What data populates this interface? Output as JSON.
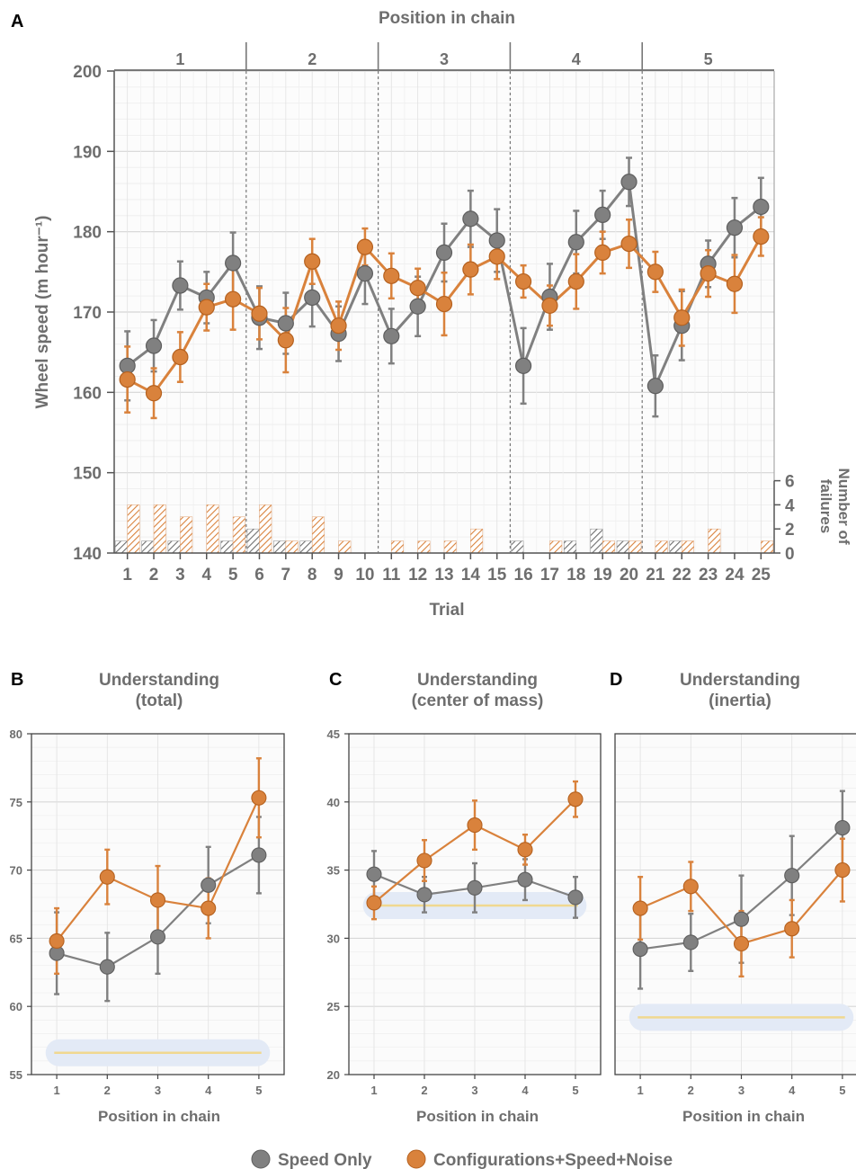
{
  "colors": {
    "speed_only": "#808080",
    "speed_only_edge": "#5e5e5e",
    "config": "#d9823c",
    "config_edge": "#b5611f",
    "chance": "#f0d890",
    "chance_band": "#e3eaf6",
    "grid": "#dcdcdc",
    "axis_text": "#6e6e6e"
  },
  "legend": [
    {
      "key": "speed_only",
      "label": "Speed Only"
    },
    {
      "key": "config",
      "label": "Configurations+Speed+Noise"
    }
  ],
  "chart_data": [
    {
      "panel": "A",
      "type": "line",
      "title": "Position in chain",
      "xlabel": "Trial",
      "ylabel": "Wheel speed (m hour⁻¹)",
      "y2label_line1": "Number of",
      "y2label_line2": "failures",
      "x": [
        1,
        2,
        3,
        4,
        5,
        6,
        7,
        8,
        9,
        10,
        11,
        12,
        13,
        14,
        15,
        16,
        17,
        18,
        19,
        20,
        21,
        22,
        23,
        24,
        25
      ],
      "xlim": [
        0.5,
        25.5
      ],
      "ylim": [
        140,
        200
      ],
      "yticks": [
        140,
        150,
        160,
        170,
        180,
        190,
        200
      ],
      "y2lim": [
        0,
        6
      ],
      "y2ticks": [
        0,
        2,
        4,
        6
      ],
      "chain_positions": [
        "1",
        "2",
        "3",
        "4",
        "5"
      ],
      "chain_boundaries": [
        5.5,
        10.5,
        15.5,
        20.5
      ],
      "grid": true,
      "series": [
        {
          "key": "speed_only",
          "values": [
            163.3,
            165.8,
            173.3,
            171.8,
            176.1,
            169.3,
            168.6,
            171.8,
            167.3,
            174.8,
            167.0,
            170.7,
            177.4,
            181.6,
            178.9,
            163.3,
            171.9,
            178.7,
            182.1,
            186.2,
            160.8,
            168.3,
            176.0,
            180.5,
            183.1
          ],
          "err": [
            4.3,
            3.2,
            3.0,
            3.2,
            3.8,
            3.9,
            3.8,
            3.6,
            3.4,
            3.8,
            3.4,
            3.7,
            3.6,
            3.5,
            3.9,
            4.7,
            4.1,
            3.9,
            3.0,
            3.0,
            3.8,
            4.3,
            2.9,
            3.7,
            3.6
          ],
          "failures": [
            1,
            1,
            1,
            0,
            1,
            2,
            1,
            1,
            0,
            0,
            0,
            0,
            0,
            0,
            0,
            1,
            0,
            1,
            2,
            1,
            0,
            1,
            0,
            0,
            0
          ]
        },
        {
          "key": "config",
          "values": [
            161.6,
            159.9,
            164.4,
            170.6,
            171.6,
            169.8,
            166.5,
            176.3,
            168.3,
            178.1,
            174.5,
            173.0,
            171.0,
            175.3,
            176.9,
            173.8,
            170.8,
            173.8,
            177.4,
            178.5,
            175.0,
            169.3,
            174.8,
            173.5,
            179.4
          ],
          "err": [
            4.1,
            3.1,
            3.1,
            2.9,
            3.8,
            3.2,
            4.0,
            2.8,
            3.0,
            2.3,
            2.8,
            2.4,
            3.9,
            3.1,
            2.8,
            2.0,
            2.5,
            3.4,
            2.6,
            3.0,
            2.5,
            3.5,
            2.9,
            3.6,
            2.4
          ],
          "failures": [
            4,
            4,
            3,
            4,
            3,
            4,
            1,
            3,
            1,
            0,
            1,
            1,
            1,
            2,
            0,
            0,
            1,
            0,
            1,
            1,
            1,
            1,
            2,
            0,
            1
          ]
        }
      ]
    },
    {
      "panel": "B",
      "type": "line",
      "title_line1": "Understanding",
      "title_line2": "(total)",
      "xlabel": "Position in chain",
      "x": [
        1,
        2,
        3,
        4,
        5
      ],
      "xlim": [
        0.5,
        5.5
      ],
      "ylim": [
        55,
        80
      ],
      "yticks": [
        55,
        60,
        65,
        70,
        75,
        80
      ],
      "chance": 56.6,
      "series": [
        {
          "key": "speed_only",
          "values": [
            63.9,
            62.9,
            65.1,
            68.9,
            71.1
          ],
          "err": [
            3.0,
            2.5,
            2.7,
            2.8,
            2.8
          ]
        },
        {
          "key": "config",
          "values": [
            64.8,
            69.5,
            67.8,
            67.2,
            75.3
          ],
          "err": [
            2.4,
            2.0,
            2.5,
            2.2,
            2.9
          ]
        }
      ]
    },
    {
      "panel": "C",
      "type": "line",
      "title_line1": "Understanding",
      "title_line2": "(center of mass)",
      "xlabel": "Position in chain",
      "x": [
        1,
        2,
        3,
        4,
        5
      ],
      "xlim": [
        0.5,
        5.5
      ],
      "ylim": [
        20,
        45
      ],
      "yticks": [
        20,
        25,
        30,
        35,
        40,
        45
      ],
      "chance": 32.4,
      "series": [
        {
          "key": "speed_only",
          "values": [
            34.7,
            33.2,
            33.7,
            34.3,
            33.0
          ],
          "err": [
            1.7,
            1.3,
            1.8,
            1.5,
            1.5
          ]
        },
        {
          "key": "config",
          "values": [
            32.6,
            35.7,
            38.3,
            36.5,
            40.2
          ],
          "err": [
            1.2,
            1.5,
            1.8,
            1.1,
            1.3
          ]
        }
      ]
    },
    {
      "panel": "D",
      "type": "line",
      "title_line1": "Understanding",
      "title_line2": "(inertia)",
      "xlabel": "Position in chain",
      "x": [
        1,
        2,
        3,
        4,
        5
      ],
      "xlim": [
        0.5,
        5.5
      ],
      "ylim": [
        20,
        45
      ],
      "yticks": [
        20,
        25,
        30,
        35,
        40,
        45
      ],
      "chance": 24.2,
      "series": [
        {
          "key": "speed_only",
          "values": [
            29.2,
            29.7,
            31.4,
            34.6,
            38.1
          ],
          "err": [
            2.9,
            2.1,
            3.2,
            2.9,
            2.7
          ]
        },
        {
          "key": "config",
          "values": [
            32.2,
            33.8,
            29.6,
            30.7,
            35.0
          ],
          "err": [
            2.3,
            1.8,
            2.4,
            2.1,
            2.3
          ]
        }
      ]
    }
  ]
}
